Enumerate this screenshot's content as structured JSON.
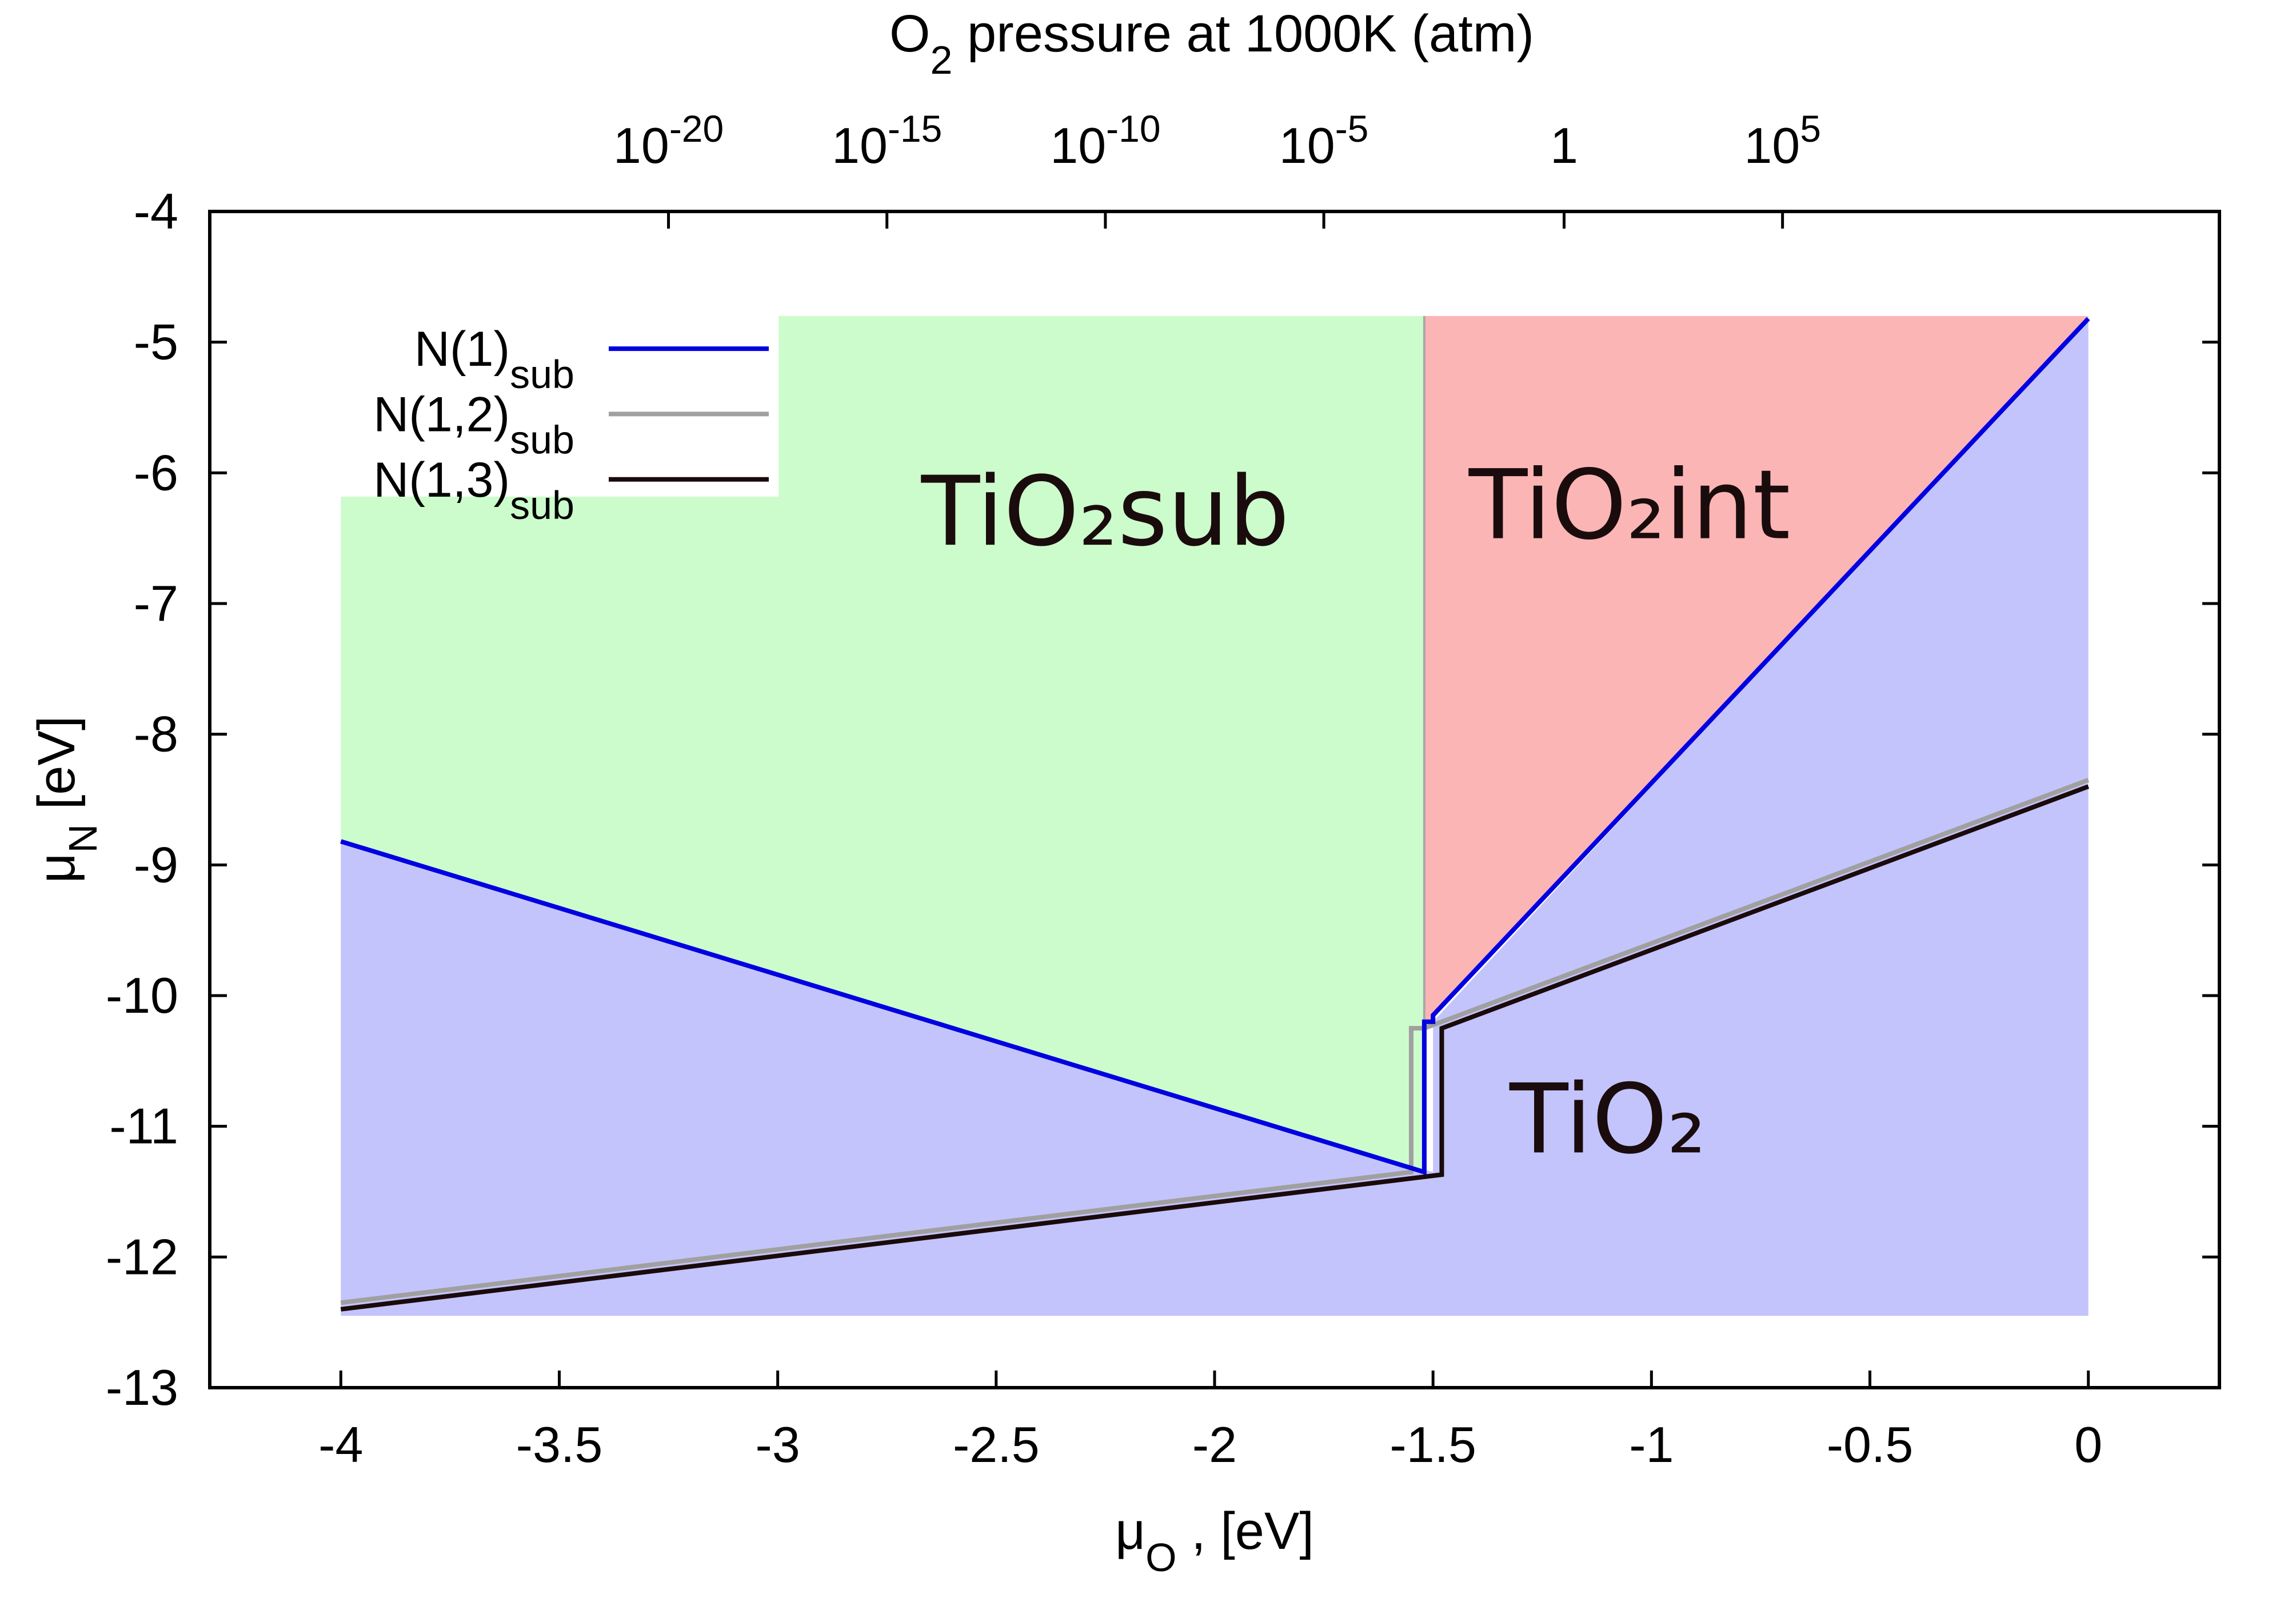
{
  "chart_data": {
    "type": "area",
    "title": "",
    "xlabel": {
      "base": "μ",
      "sub": "O",
      "rest": " , [eV]"
    },
    "ylabel": {
      "base": "μ",
      "sub": "N",
      "rest": " [eV]"
    },
    "x2label": {
      "base": "O",
      "sub": "2",
      "rest": " pressure at 1000K (atm)"
    },
    "xlim": [
      -4.3,
      0.3
    ],
    "ylim": [
      -13,
      -4
    ],
    "xticks": [
      {
        "value": -4,
        "label": "-4"
      },
      {
        "value": -3.5,
        "label": "-3.5"
      },
      {
        "value": -3,
        "label": "-3"
      },
      {
        "value": -2.5,
        "label": "-2.5"
      },
      {
        "value": -2,
        "label": "-2"
      },
      {
        "value": -1.5,
        "label": "-1.5"
      },
      {
        "value": -1,
        "label": "-1"
      },
      {
        "value": -0.5,
        "label": "-0.5"
      },
      {
        "value": 0,
        "label": "0"
      }
    ],
    "yticks": [
      {
        "value": -4,
        "label": "-4"
      },
      {
        "value": -5,
        "label": "-5"
      },
      {
        "value": -6,
        "label": "-6"
      },
      {
        "value": -7,
        "label": "-7"
      },
      {
        "value": -8,
        "label": "-8"
      },
      {
        "value": -9,
        "label": "-9"
      },
      {
        "value": -10,
        "label": "-10"
      },
      {
        "value": -11,
        "label": "-11"
      },
      {
        "value": -12,
        "label": "-12"
      },
      {
        "value": -13,
        "label": "-13"
      }
    ],
    "x2ticks": [
      {
        "value": -3.25,
        "base": "10",
        "exp": "-20"
      },
      {
        "value": -2.75,
        "base": "10",
        "exp": "-15"
      },
      {
        "value": -2.25,
        "base": "10",
        "exp": "-10"
      },
      {
        "value": -1.75,
        "base": "10",
        "exp": "-5"
      },
      {
        "value": -1.2,
        "base": "1",
        "exp": ""
      },
      {
        "value": -0.7,
        "base": "10",
        "exp": "5"
      }
    ],
    "regions": [
      {
        "name": "TiO2",
        "label": "TiO₂",
        "label_at": [
          -1.1,
          -11.2
        ],
        "color": "#c4c4fc",
        "polygon": [
          [
            -4,
            -12.45
          ],
          [
            0,
            -12.45
          ],
          [
            0,
            -4.8
          ],
          [
            -1.5,
            -10.2
          ],
          [
            -1.5,
            -11.35
          ],
          [
            -4,
            -8.82
          ]
        ]
      },
      {
        "name": "TiO2sub",
        "label": "TiO₂sub",
        "label_at": [
          -2.25,
          -6.55
        ],
        "color": "#ccfccc",
        "polygon": [
          [
            -4,
            -6.15
          ],
          [
            -3.0,
            -6.15
          ],
          [
            -3.0,
            -4.8
          ],
          [
            -1.52,
            -4.8
          ],
          [
            -1.52,
            -11.35
          ],
          [
            -4,
            -8.82
          ]
        ]
      },
      {
        "name": "TiO2int",
        "label": "TiO₂int",
        "label_at": [
          -1.05,
          -6.5
        ],
        "color": "#fcb5b5",
        "polygon": [
          [
            -1.52,
            -4.8
          ],
          [
            0,
            -4.8
          ],
          [
            -1.52,
            -10.25
          ]
        ]
      }
    ],
    "series": [
      {
        "name": "N(1,2)sub",
        "label": {
          "base": "N(1,2)",
          "sub": "sub"
        },
        "color": "#a0a0a0",
        "x": [
          -4,
          -1.55,
          -1.55,
          -1.52,
          0
        ],
        "y": [
          -12.35,
          -11.35,
          -10.25,
          -10.25,
          -8.35
        ]
      },
      {
        "name": "N(1,3)sub",
        "label": {
          "base": "N(1,3)",
          "sub": "sub"
        },
        "color": "#1a0a0a",
        "x": [
          -4,
          -1.48,
          -1.48,
          0
        ],
        "y": [
          -12.4,
          -11.37,
          -10.25,
          -8.4
        ]
      },
      {
        "name": "N(1)sub",
        "label": {
          "base": "N(1)",
          "sub": "sub"
        },
        "color": "#0000e0",
        "x": [
          -4,
          -1.52,
          -1.52,
          -1.5,
          -1.5,
          0
        ],
        "y": [
          -8.82,
          -11.35,
          -10.2,
          -10.2,
          -10.15,
          -4.82
        ]
      }
    ],
    "legend": {
      "position": "top-left",
      "order": [
        "N(1)sub",
        "N(1,2)sub",
        "N(1,3)sub"
      ]
    }
  }
}
